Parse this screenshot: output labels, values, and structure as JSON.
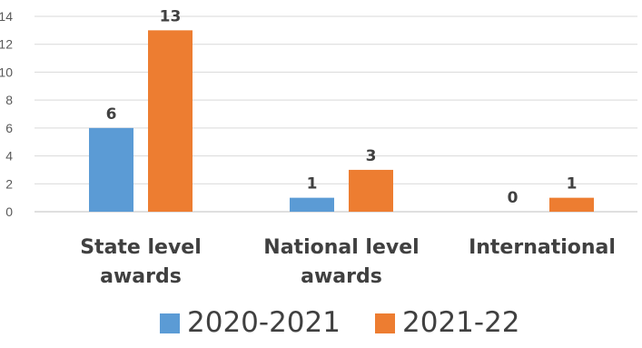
{
  "chart_data": {
    "type": "bar",
    "categories": [
      [
        "State level",
        "awards"
      ],
      [
        "National level",
        "awards"
      ],
      [
        "International"
      ]
    ],
    "series": [
      {
        "name": "2020-2021",
        "color": "#5B9BD5",
        "values": [
          6,
          1,
          0
        ]
      },
      {
        "name": "2021-22",
        "color": "#ED7D31",
        "values": [
          13,
          3,
          1
        ]
      }
    ],
    "ylim": [
      0,
      14
    ],
    "yticks": [
      0,
      2,
      4,
      6,
      8,
      10,
      12,
      14
    ],
    "grid": true,
    "legend": "bottom",
    "title": "",
    "xlabel": "",
    "ylabel": ""
  }
}
